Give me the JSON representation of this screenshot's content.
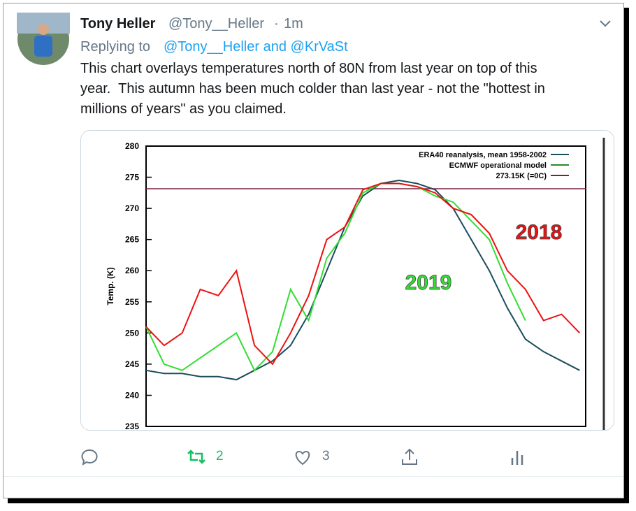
{
  "tweet": {
    "name": "Tony Heller",
    "handle": "@Tony__Heller",
    "time": "1m",
    "replying_label": "Replying to",
    "reply_targets": "@Tony__Heller and @KrVaSt",
    "body_lines": [
      "This chart overlays temperatures north of 80N from last year on top of this",
      "year.  This autumn has been much colder than last year - not the \"hottest in",
      "millions of years\" as you claimed."
    ],
    "retweets": 2,
    "likes": 3
  },
  "chart_data": {
    "type": "line",
    "ylabel": "Temp. (K)",
    "x": [
      0,
      15,
      30,
      45,
      60,
      75,
      90,
      105,
      120,
      135,
      150,
      165,
      180,
      195,
      210,
      225,
      240,
      255,
      270,
      285,
      300,
      315,
      330,
      345,
      360
    ],
    "xlim": [
      0,
      365
    ],
    "ylim": [
      235,
      280
    ],
    "yticks": [
      235,
      240,
      245,
      250,
      255,
      260,
      265,
      270,
      275,
      280
    ],
    "series": [
      {
        "name": "ERA40 reanalysis, mean 1958-2002",
        "color": "#1b4d5c",
        "values": [
          244,
          243.5,
          243.5,
          243,
          243,
          242.5,
          244,
          245.5,
          248,
          253,
          260,
          267,
          272,
          274,
          274.5,
          274,
          273,
          270,
          265,
          260,
          254,
          249,
          247,
          245.5,
          244
        ]
      },
      {
        "name": "2019",
        "color": "#33dd33",
        "values": [
          251,
          245,
          244,
          246,
          248,
          250,
          244,
          247,
          257,
          252,
          262,
          266,
          272.5,
          274,
          274,
          273.5,
          272,
          271,
          268,
          265,
          258,
          252,
          null,
          null,
          null
        ]
      },
      {
        "name": "2018",
        "color": "#ee1111",
        "values": [
          251,
          248,
          250,
          257,
          256,
          260,
          248,
          245,
          250,
          256,
          265,
          267,
          273,
          274,
          274,
          273.5,
          272.5,
          270,
          269,
          266,
          260,
          257,
          252,
          253,
          250
        ]
      }
    ],
    "legend": [
      {
        "label": "ERA40 reanalysis, mean 1958-2002",
        "color": "#1b4d5c"
      },
      {
        "label": "ECMWF operational model",
        "color": "#2a8a2a"
      },
      {
        "label": "273.15K (=0C)",
        "color": "#7a2040"
      }
    ],
    "reference_line": {
      "value": 273.15,
      "color": "#7a2040"
    }
  }
}
